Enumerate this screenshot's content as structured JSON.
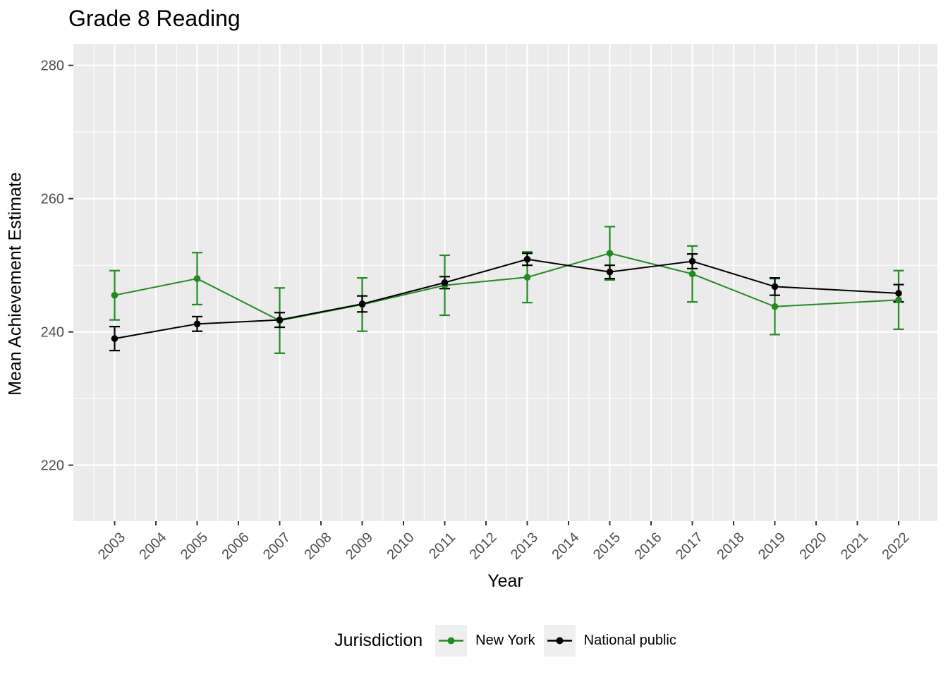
{
  "title": "Grade 8 Reading",
  "colors": {
    "new_york": "#228B22",
    "national_public": "#000000",
    "panel_background": "#EBEBEB",
    "gridline": "#FFFFFF",
    "tick_label_text": "#4D4D4D",
    "tick_mark": "#333333",
    "legend_key_background": "#EFEFEF",
    "title_text": "#000000"
  },
  "legend": {
    "title": "Jurisdiction",
    "position": "bottom",
    "items": [
      {
        "label": "New York",
        "color": "#228B22"
      },
      {
        "label": "National public",
        "color": "#000000"
      }
    ]
  },
  "chart_data": {
    "type": "line",
    "title": "Grade 8 Reading",
    "xlabel": "Year",
    "ylabel": "Mean Achievement Estimate",
    "x_ticks": [
      2003,
      2004,
      2005,
      2006,
      2007,
      2008,
      2009,
      2010,
      2011,
      2012,
      2013,
      2014,
      2015,
      2016,
      2017,
      2018,
      2019,
      2020,
      2021,
      2022
    ],
    "y_ticks": [
      220,
      240,
      260,
      280
    ],
    "y_minor_ticks": [
      230,
      250,
      270
    ],
    "xlim": [
      2002,
      2022.94
    ],
    "ylim": [
      211.6,
      283.25
    ],
    "grid": true,
    "error_bars": true,
    "legend_title": "Jurisdiction",
    "legend_position": "bottom",
    "series": [
      {
        "name": "New York",
        "color": "#228B22",
        "x": [
          2003,
          2005,
          2007,
          2009,
          2011,
          2013,
          2015,
          2017,
          2019,
          2022
        ],
        "values": [
          245.5,
          248.0,
          241.7,
          244.1,
          247.0,
          248.2,
          251.8,
          248.7,
          243.8,
          244.8
        ],
        "ci_low": [
          241.8,
          244.1,
          236.8,
          240.1,
          242.5,
          244.4,
          247.8,
          244.5,
          239.6,
          240.4
        ],
        "ci_high": [
          249.2,
          251.9,
          246.6,
          248.1,
          251.5,
          252.0,
          255.8,
          252.9,
          248.0,
          249.2
        ]
      },
      {
        "name": "National public",
        "color": "#000000",
        "x": [
          2003,
          2005,
          2007,
          2009,
          2011,
          2013,
          2015,
          2017,
          2019,
          2022
        ],
        "values": [
          239.0,
          241.2,
          241.8,
          244.2,
          247.4,
          250.9,
          249.0,
          250.6,
          246.8,
          245.8
        ],
        "ci_low": [
          237.2,
          240.1,
          240.7,
          243.0,
          246.5,
          250.0,
          248.0,
          249.5,
          245.5,
          244.5
        ],
        "ci_high": [
          240.8,
          242.3,
          242.9,
          245.4,
          248.3,
          251.8,
          250.0,
          251.7,
          248.1,
          247.1
        ]
      }
    ]
  }
}
